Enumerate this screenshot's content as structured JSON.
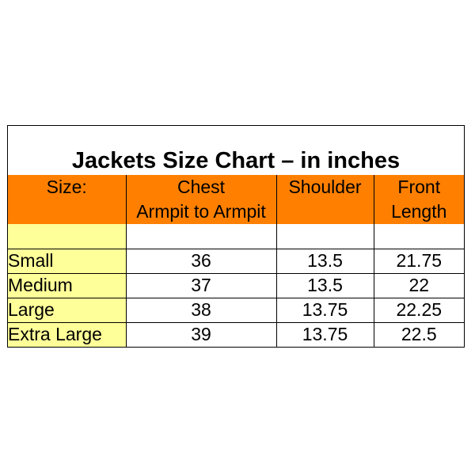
{
  "title": "Jackets Size Chart – in inches",
  "headers": {
    "row1": [
      "Size:",
      "Chest",
      "Shoulder",
      "Front"
    ],
    "row2": [
      "",
      "Armpit to Armpit",
      "",
      "Length"
    ]
  },
  "rows": [
    {
      "size": "Small",
      "chest": "36",
      "shoulder": "13.5",
      "length": "21.75"
    },
    {
      "size": "Medium",
      "chest": "37",
      "shoulder": "13.5",
      "length": "22"
    },
    {
      "size": "Large",
      "chest": "38",
      "shoulder": "13.75",
      "length": "22.25"
    },
    {
      "size": "Extra Large",
      "chest": "39",
      "shoulder": "13.75",
      "length": "22.5"
    }
  ],
  "colors": {
    "header_fill": "#ff8000",
    "size_column_fill": "#ffff99",
    "background": "#ffffff",
    "grid_line": "#000000"
  }
}
